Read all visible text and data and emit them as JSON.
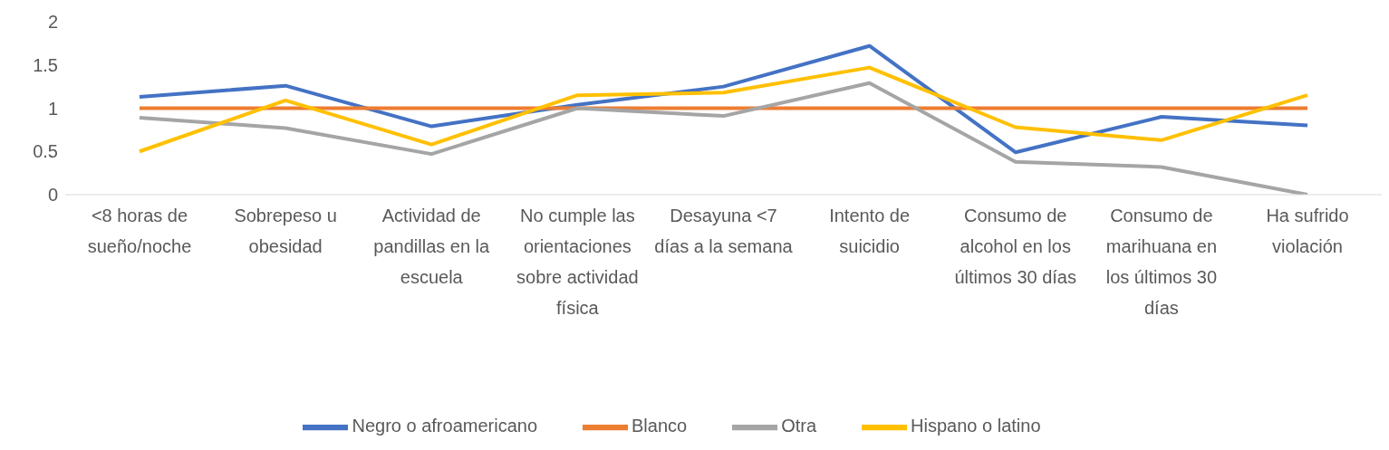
{
  "chart_data": {
    "type": "line",
    "categories": [
      "<8 horas de sueño/noche",
      "Sobrepeso u obesidad",
      "Actividad de pandillas en la escuela",
      "No cumple las orientaciones sobre actividad física",
      "Desayuna <7 días a la semana",
      "Intento de suicidio",
      "Consumo de alcohol en los últimos 30 días",
      "Consumo de marihuana en los últimos 30 días",
      "Ha sufrido violación"
    ],
    "series": [
      {
        "name": "Negro o afroamericano",
        "color": "#4472c4",
        "values": [
          1.13,
          1.26,
          0.79,
          1.04,
          1.25,
          1.72,
          0.49,
          0.9,
          0.8
        ]
      },
      {
        "name": "Blanco",
        "color": "#ed7d31",
        "values": [
          1,
          1,
          1,
          1,
          1,
          1,
          1,
          1,
          1
        ]
      },
      {
        "name": "Otra",
        "color": "#a5a5a5",
        "values": [
          0.89,
          0.77,
          0.47,
          1,
          0.91,
          1.29,
          0.38,
          0.32,
          0
        ]
      },
      {
        "name": "Hispano o latino",
        "color": "#ffc000",
        "values": [
          0.5,
          1.09,
          0.58,
          1.15,
          1.18,
          1.47,
          0.78,
          0.63,
          1.15
        ]
      }
    ],
    "ylim": [
      0,
      2
    ],
    "yticks": [
      0,
      0.5,
      1,
      1.5,
      2
    ],
    "grid": false,
    "legend": "bottom",
    "marker": "none",
    "line_style": "solid"
  }
}
